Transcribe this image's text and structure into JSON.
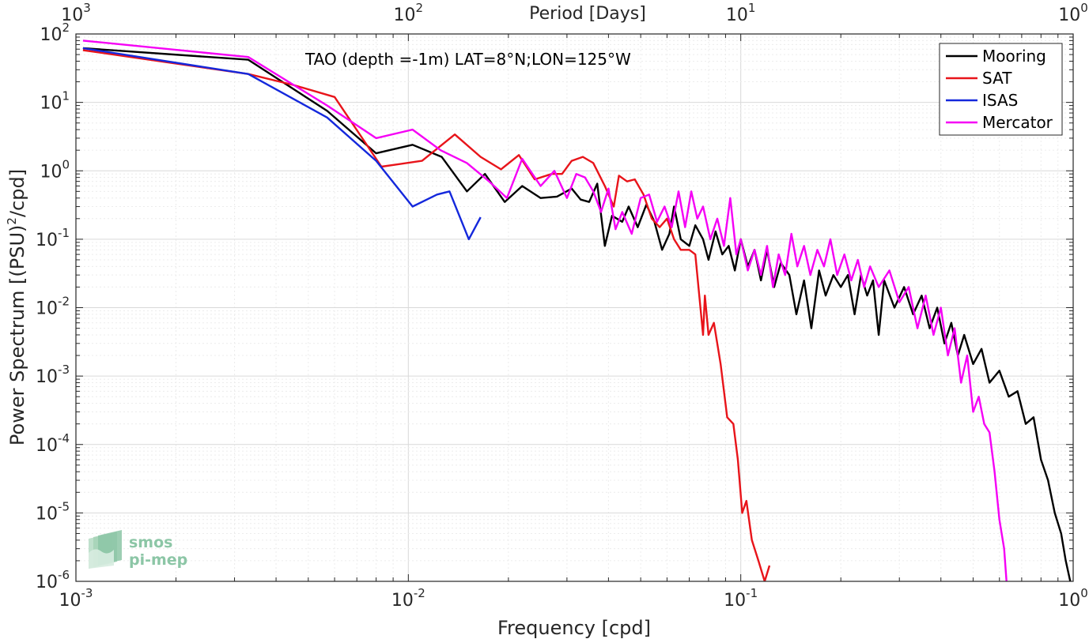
{
  "chart_data": {
    "type": "line",
    "title": "TAO (depth =-1m) LAT=8°N;LON=125°W",
    "xlabel": "Frequency [cpd]",
    "ylabel": "Power Spectrum [(PSU)²/cpd]",
    "ylabel_parts": {
      "pre": "Power Spectrum [(PSU)",
      "sup": "2",
      "post": "/cpd]"
    },
    "top_xlabel": "Period [Days]",
    "xscale": "log",
    "yscale": "log",
    "xlim": [
      0.001,
      1
    ],
    "ylim": [
      1e-06,
      100
    ],
    "grid": true,
    "legend_position": "top-right",
    "x_ticks": [
      {
        "base": "10",
        "exp": "-3"
      },
      {
        "base": "10",
        "exp": "-2"
      },
      {
        "base": "10",
        "exp": "-1"
      },
      {
        "base": "10",
        "exp": "0"
      }
    ],
    "top_ticks": [
      {
        "base": "10",
        "exp": "3"
      },
      {
        "base": "10",
        "exp": "2"
      },
      {
        "base": "10",
        "exp": "1"
      },
      {
        "base": "10",
        "exp": "0"
      }
    ],
    "y_ticks": [
      {
        "base": "10",
        "exp": "2"
      },
      {
        "base": "10",
        "exp": "1"
      },
      {
        "base": "10",
        "exp": "0"
      },
      {
        "base": "10",
        "exp": "-1"
      },
      {
        "base": "10",
        "exp": "-2"
      },
      {
        "base": "10",
        "exp": "-3"
      },
      {
        "base": "10",
        "exp": "-4"
      },
      {
        "base": "10",
        "exp": "-5"
      },
      {
        "base": "10",
        "exp": "-6"
      }
    ],
    "series": [
      {
        "name": "Mooring",
        "color": "#000000",
        "points": [
          [
            0.00105,
            62
          ],
          [
            0.0033,
            42
          ],
          [
            0.0057,
            7.5
          ],
          [
            0.008,
            1.8
          ],
          [
            0.0103,
            2.4
          ],
          [
            0.0126,
            1.6
          ],
          [
            0.015,
            0.5
          ],
          [
            0.017,
            0.9
          ],
          [
            0.0195,
            0.35
          ],
          [
            0.022,
            0.6
          ],
          [
            0.025,
            0.4
          ],
          [
            0.028,
            0.42
          ],
          [
            0.031,
            0.55
          ],
          [
            0.033,
            0.38
          ],
          [
            0.035,
            0.35
          ],
          [
            0.037,
            0.65
          ],
          [
            0.039,
            0.08
          ],
          [
            0.041,
            0.22
          ],
          [
            0.044,
            0.18
          ],
          [
            0.046,
            0.3
          ],
          [
            0.049,
            0.15
          ],
          [
            0.052,
            0.32
          ],
          [
            0.055,
            0.18
          ],
          [
            0.058,
            0.07
          ],
          [
            0.061,
            0.12
          ],
          [
            0.063,
            0.3
          ],
          [
            0.066,
            0.1
          ],
          [
            0.07,
            0.08
          ],
          [
            0.073,
            0.16
          ],
          [
            0.077,
            0.1
          ],
          [
            0.08,
            0.05
          ],
          [
            0.084,
            0.13
          ],
          [
            0.088,
            0.06
          ],
          [
            0.092,
            0.08
          ],
          [
            0.096,
            0.035
          ],
          [
            0.1,
            0.1
          ],
          [
            0.105,
            0.04
          ],
          [
            0.11,
            0.07
          ],
          [
            0.115,
            0.025
          ],
          [
            0.12,
            0.07
          ],
          [
            0.126,
            0.02
          ],
          [
            0.132,
            0.045
          ],
          [
            0.14,
            0.03
          ],
          [
            0.147,
            0.008
          ],
          [
            0.155,
            0.025
          ],
          [
            0.163,
            0.005
          ],
          [
            0.172,
            0.035
          ],
          [
            0.18,
            0.015
          ],
          [
            0.19,
            0.03
          ],
          [
            0.2,
            0.02
          ],
          [
            0.21,
            0.03
          ],
          [
            0.22,
            0.008
          ],
          [
            0.23,
            0.03
          ],
          [
            0.24,
            0.015
          ],
          [
            0.25,
            0.025
          ],
          [
            0.26,
            0.004
          ],
          [
            0.27,
            0.025
          ],
          [
            0.29,
            0.01
          ],
          [
            0.31,
            0.02
          ],
          [
            0.33,
            0.008
          ],
          [
            0.35,
            0.015
          ],
          [
            0.37,
            0.005
          ],
          [
            0.39,
            0.01
          ],
          [
            0.41,
            0.003
          ],
          [
            0.43,
            0.006
          ],
          [
            0.45,
            0.002
          ],
          [
            0.47,
            0.004
          ],
          [
            0.5,
            0.0015
          ],
          [
            0.53,
            0.0025
          ],
          [
            0.56,
            0.0008
          ],
          [
            0.6,
            0.0012
          ],
          [
            0.64,
            0.0005
          ],
          [
            0.68,
            0.0006
          ],
          [
            0.72,
            0.0002
          ],
          [
            0.76,
            0.00025
          ],
          [
            0.8,
            6e-05
          ],
          [
            0.84,
            3e-05
          ],
          [
            0.88,
            1e-05
          ],
          [
            0.92,
            5e-06
          ],
          [
            0.95,
            2e-06
          ],
          [
            0.98,
            1e-06
          ]
        ]
      },
      {
        "name": "SAT",
        "color": "#e8141a",
        "points": [
          [
            0.00105,
            58
          ],
          [
            0.0033,
            26
          ],
          [
            0.0045,
            18
          ],
          [
            0.006,
            12
          ],
          [
            0.0083,
            1.15
          ],
          [
            0.011,
            1.4
          ],
          [
            0.0138,
            3.4
          ],
          [
            0.0165,
            1.6
          ],
          [
            0.019,
            1.05
          ],
          [
            0.0215,
            1.7
          ],
          [
            0.024,
            0.75
          ],
          [
            0.027,
            0.9
          ],
          [
            0.029,
            0.9
          ],
          [
            0.031,
            1.4
          ],
          [
            0.0335,
            1.6
          ],
          [
            0.036,
            1.3
          ],
          [
            0.039,
            0.6
          ],
          [
            0.0415,
            0.3
          ],
          [
            0.043,
            0.85
          ],
          [
            0.0455,
            0.7
          ],
          [
            0.048,
            0.75
          ],
          [
            0.051,
            0.45
          ],
          [
            0.054,
            0.2
          ],
          [
            0.057,
            0.15
          ],
          [
            0.06,
            0.2
          ],
          [
            0.063,
            0.1
          ],
          [
            0.066,
            0.07
          ],
          [
            0.07,
            0.07
          ],
          [
            0.073,
            0.06
          ],
          [
            0.075,
            0.015
          ],
          [
            0.077,
            0.004
          ],
          [
            0.078,
            0.015
          ],
          [
            0.08,
            0.004
          ],
          [
            0.083,
            0.006
          ],
          [
            0.087,
            0.0015
          ],
          [
            0.091,
            0.00025
          ],
          [
            0.095,
            0.0002
          ],
          [
            0.098,
            6e-05
          ],
          [
            0.101,
            1e-05
          ],
          [
            0.104,
            1.5e-05
          ],
          [
            0.108,
            4e-06
          ],
          [
            0.113,
            2e-06
          ],
          [
            0.118,
            1e-06
          ],
          [
            0.122,
            1.7e-06
          ]
        ]
      },
      {
        "name": "ISAS",
        "color": "#1428dc",
        "points": [
          [
            0.00105,
            62
          ],
          [
            0.0033,
            26
          ],
          [
            0.0057,
            6
          ],
          [
            0.008,
            1.4
          ],
          [
            0.0103,
            0.3
          ],
          [
            0.0122,
            0.45
          ],
          [
            0.0133,
            0.5
          ],
          [
            0.0152,
            0.1
          ],
          [
            0.0165,
            0.21
          ]
        ]
      },
      {
        "name": "Mercator",
        "color": "#f500f5",
        "points": [
          [
            0.00105,
            80
          ],
          [
            0.0033,
            46
          ],
          [
            0.0057,
            9
          ],
          [
            0.008,
            3
          ],
          [
            0.0103,
            4
          ],
          [
            0.0125,
            2
          ],
          [
            0.015,
            1.3
          ],
          [
            0.0175,
            0.7
          ],
          [
            0.0198,
            0.4
          ],
          [
            0.022,
            1.5
          ],
          [
            0.025,
            0.6
          ],
          [
            0.0275,
            1.0
          ],
          [
            0.03,
            0.4
          ],
          [
            0.032,
            0.9
          ],
          [
            0.034,
            0.8
          ],
          [
            0.036,
            0.5
          ],
          [
            0.038,
            0.25
          ],
          [
            0.04,
            0.55
          ],
          [
            0.042,
            0.14
          ],
          [
            0.044,
            0.25
          ],
          [
            0.047,
            0.12
          ],
          [
            0.05,
            0.4
          ],
          [
            0.053,
            0.45
          ],
          [
            0.056,
            0.18
          ],
          [
            0.059,
            0.3
          ],
          [
            0.062,
            0.15
          ],
          [
            0.065,
            0.5
          ],
          [
            0.068,
            0.15
          ],
          [
            0.071,
            0.5
          ],
          [
            0.074,
            0.2
          ],
          [
            0.077,
            0.3
          ],
          [
            0.081,
            0.1
          ],
          [
            0.085,
            0.2
          ],
          [
            0.089,
            0.08
          ],
          [
            0.093,
            0.4
          ],
          [
            0.097,
            0.06
          ],
          [
            0.1,
            0.1
          ],
          [
            0.105,
            0.035
          ],
          [
            0.11,
            0.07
          ],
          [
            0.115,
            0.03
          ],
          [
            0.12,
            0.08
          ],
          [
            0.125,
            0.02
          ],
          [
            0.13,
            0.06
          ],
          [
            0.136,
            0.03
          ],
          [
            0.142,
            0.12
          ],
          [
            0.148,
            0.04
          ],
          [
            0.155,
            0.08
          ],
          [
            0.162,
            0.03
          ],
          [
            0.17,
            0.07
          ],
          [
            0.178,
            0.04
          ],
          [
            0.186,
            0.1
          ],
          [
            0.195,
            0.03
          ],
          [
            0.205,
            0.06
          ],
          [
            0.215,
            0.025
          ],
          [
            0.225,
            0.05
          ],
          [
            0.235,
            0.02
          ],
          [
            0.245,
            0.04
          ],
          [
            0.26,
            0.02
          ],
          [
            0.28,
            0.035
          ],
          [
            0.3,
            0.012
          ],
          [
            0.32,
            0.02
          ],
          [
            0.34,
            0.005
          ],
          [
            0.36,
            0.015
          ],
          [
            0.38,
            0.004
          ],
          [
            0.4,
            0.01
          ],
          [
            0.42,
            0.002
          ],
          [
            0.44,
            0.005
          ],
          [
            0.46,
            0.0008
          ],
          [
            0.48,
            0.002
          ],
          [
            0.5,
            0.0003
          ],
          [
            0.52,
            0.0005
          ],
          [
            0.54,
            0.0002
          ],
          [
            0.56,
            0.00015
          ],
          [
            0.58,
            4e-05
          ],
          [
            0.6,
            8e-06
          ],
          [
            0.62,
            3e-06
          ],
          [
            0.63,
            1e-06
          ]
        ]
      }
    ]
  },
  "logo": {
    "line1": "smos",
    "line2": "pi-mep"
  }
}
